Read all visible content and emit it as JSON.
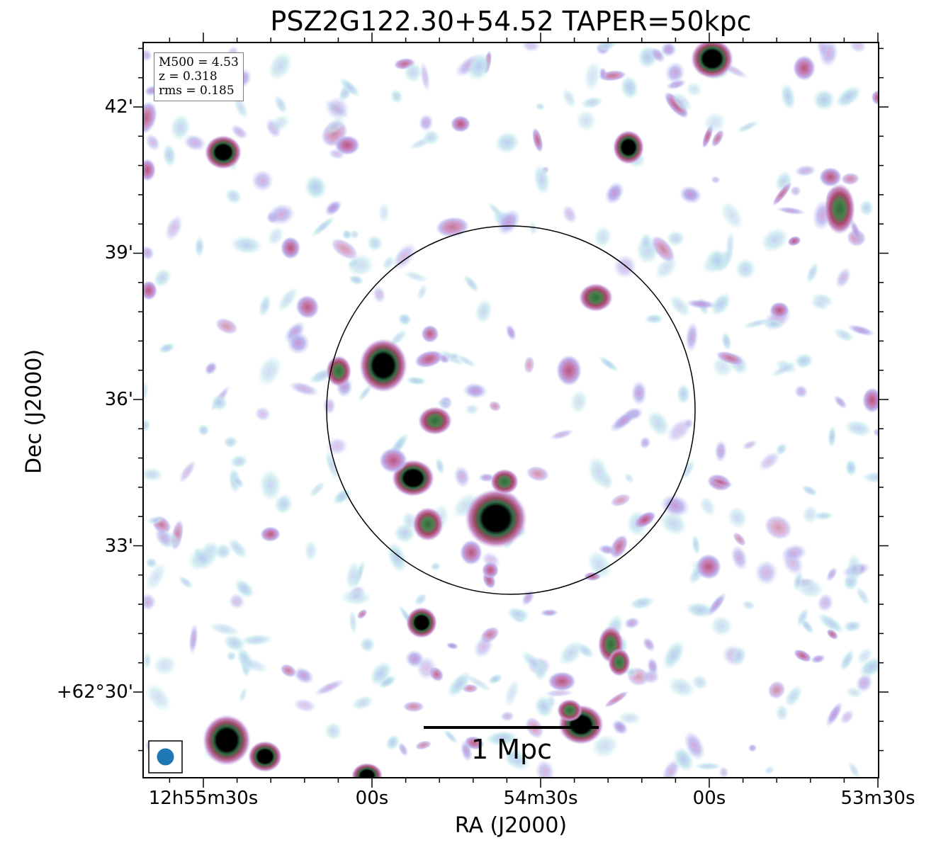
{
  "title": "PSZ2G122.30+54.52 TAPER=50kpc",
  "xlabel": "RA (J2000)",
  "ylabel": "Dec (J2000)",
  "x_ticks": [
    "12h55m30s",
    "00s",
    "54m30s",
    "00s",
    "53m30s"
  ],
  "y_ticks": [
    "42'",
    "39'",
    "36'",
    "33'",
    "+62°30'"
  ],
  "info": {
    "m500": "M500 = 4.53",
    "z": "z = 0.318",
    "rms": "rms = 0.185"
  },
  "scale_bar": "1 Mpc",
  "colors": {
    "beam": "#1f77b4",
    "circle": "#000000",
    "noise_light": "#bfe3ea",
    "noise_mid": "#b5b2ec",
    "source_pink": "#c77fb7",
    "source_red": "#a8456a",
    "source_green": "#3e7a4a",
    "source_core": "#000000"
  }
}
